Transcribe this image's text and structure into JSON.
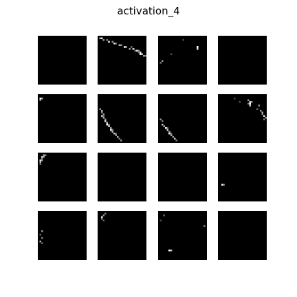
{
  "figure": {
    "title": "activation_4"
  },
  "panels": {
    "rows": 4,
    "cols": 4,
    "background_color": "#000000",
    "pixels_per_side": 28,
    "tiles": [
      {
        "row": 0,
        "col": 0,
        "pixels": []
      },
      {
        "row": 0,
        "col": 1,
        "pixels": [
          [
            1,
            1,
            0.7
          ],
          [
            2,
            1,
            0.9
          ],
          [
            3,
            2,
            0.6
          ],
          [
            5,
            2,
            0.5
          ],
          [
            6,
            3,
            0.8
          ],
          [
            8,
            3,
            0.6
          ],
          [
            9,
            4,
            0.9
          ],
          [
            10,
            4,
            0.5
          ],
          [
            12,
            5,
            0.7
          ],
          [
            13,
            5,
            0.6
          ],
          [
            15,
            6,
            0.8
          ],
          [
            16,
            6,
            0.5
          ],
          [
            18,
            7,
            0.6
          ],
          [
            20,
            7,
            0.8
          ],
          [
            21,
            8,
            0.5
          ],
          [
            22,
            8,
            0.9
          ],
          [
            23,
            8,
            0.6
          ],
          [
            24,
            9,
            0.9
          ],
          [
            24,
            10,
            1.0
          ],
          [
            25,
            10,
            0.7
          ],
          [
            26,
            11,
            0.6
          ],
          [
            27,
            11,
            0.5
          ],
          [
            23,
            9,
            0.4
          ],
          [
            19,
            6,
            0.4
          ]
        ]
      },
      {
        "row": 0,
        "col": 2,
        "pixels": [
          [
            22,
            6,
            1.0
          ],
          [
            22,
            7,
            0.9
          ],
          [
            2,
            14,
            0.6
          ],
          [
            1,
            15,
            0.5
          ],
          [
            14,
            2,
            0.3
          ],
          [
            7,
            10,
            0.3
          ]
        ]
      },
      {
        "row": 0,
        "col": 3,
        "pixels": []
      },
      {
        "row": 1,
        "col": 0,
        "pixels": [
          [
            1,
            2,
            1.0
          ],
          [
            2,
            2,
            0.7
          ],
          [
            1,
            3,
            0.5
          ]
        ]
      },
      {
        "row": 1,
        "col": 1,
        "pixels": [
          [
            1,
            8,
            0.6
          ],
          [
            2,
            9,
            0.7
          ],
          [
            2,
            10,
            0.5
          ],
          [
            3,
            11,
            0.6
          ],
          [
            2,
            12,
            0.8
          ],
          [
            3,
            13,
            0.7
          ],
          [
            4,
            14,
            0.6
          ],
          [
            4,
            15,
            0.9
          ],
          [
            5,
            16,
            0.8
          ],
          [
            5,
            17,
            1.0
          ],
          [
            6,
            18,
            0.7
          ],
          [
            7,
            19,
            0.6
          ],
          [
            7,
            20,
            0.9
          ],
          [
            8,
            21,
            0.7
          ],
          [
            9,
            22,
            0.8
          ],
          [
            10,
            23,
            0.6
          ],
          [
            11,
            24,
            0.7
          ],
          [
            12,
            25,
            0.5
          ],
          [
            13,
            26,
            0.6
          ],
          [
            3,
            12,
            0.4
          ],
          [
            6,
            17,
            0.5
          ],
          [
            8,
            20,
            0.5
          ],
          [
            10,
            22,
            0.4
          ]
        ]
      },
      {
        "row": 1,
        "col": 2,
        "pixels": [
          [
            1,
            14,
            0.6
          ],
          [
            2,
            15,
            0.5
          ],
          [
            2,
            17,
            0.8
          ],
          [
            3,
            18,
            0.7
          ],
          [
            4,
            19,
            1.0
          ],
          [
            5,
            20,
            0.8
          ],
          [
            6,
            21,
            0.6
          ],
          [
            6,
            22,
            0.9
          ],
          [
            7,
            23,
            0.7
          ],
          [
            8,
            24,
            0.6
          ],
          [
            9,
            25,
            0.8
          ],
          [
            10,
            26,
            0.5
          ],
          [
            5,
            19,
            0.4
          ],
          [
            7,
            22,
            0.4
          ]
        ]
      },
      {
        "row": 1,
        "col": 3,
        "pixels": [
          [
            17,
            3,
            0.6
          ],
          [
            18,
            4,
            0.8
          ],
          [
            18,
            5,
            1.0
          ],
          [
            19,
            4,
            0.6
          ],
          [
            17,
            5,
            0.5
          ],
          [
            18,
            6,
            0.7
          ],
          [
            23,
            6,
            0.5
          ],
          [
            24,
            9,
            0.6
          ],
          [
            25,
            10,
            0.7
          ],
          [
            26,
            12,
            0.9
          ],
          [
            27,
            13,
            0.6
          ],
          [
            26,
            14,
            0.5
          ],
          [
            25,
            11,
            0.5
          ],
          [
            9,
            2,
            0.3
          ],
          [
            12,
            4,
            0.3
          ],
          [
            22,
            8,
            0.4
          ]
        ]
      },
      {
        "row": 2,
        "col": 0,
        "pixels": [
          [
            3,
            1,
            0.7
          ],
          [
            4,
            1,
            0.5
          ],
          [
            2,
            2,
            0.8
          ],
          [
            3,
            2,
            0.6
          ],
          [
            2,
            3,
            0.5
          ],
          [
            1,
            4,
            0.9
          ],
          [
            2,
            4,
            0.6
          ],
          [
            1,
            5,
            0.7
          ],
          [
            1,
            6,
            0.4
          ]
        ]
      },
      {
        "row": 2,
        "col": 1,
        "pixels": []
      },
      {
        "row": 2,
        "col": 2,
        "pixels": []
      },
      {
        "row": 2,
        "col": 3,
        "pixels": [
          [
            2,
            18,
            1.0
          ],
          [
            3,
            18,
            0.5
          ]
        ]
      },
      {
        "row": 3,
        "col": 0,
        "pixels": [
          [
            2,
            11,
            0.6
          ],
          [
            1,
            13,
            0.4
          ],
          [
            2,
            15,
            0.5
          ],
          [
            1,
            17,
            0.7
          ],
          [
            2,
            18,
            0.4
          ]
        ]
      },
      {
        "row": 3,
        "col": 1,
        "pixels": [
          [
            2,
            3,
            0.9
          ],
          [
            3,
            2,
            0.6
          ],
          [
            2,
            4,
            0.5
          ],
          [
            4,
            1,
            0.5
          ],
          [
            3,
            5,
            0.4
          ]
        ]
      },
      {
        "row": 3,
        "col": 2,
        "pixels": [
          [
            26,
            8,
            0.5
          ],
          [
            6,
            22,
            1.0
          ],
          [
            7,
            22,
            0.7
          ],
          [
            3,
            2,
            0.4
          ],
          [
            1,
            5,
            0.3
          ]
        ]
      },
      {
        "row": 3,
        "col": 3,
        "pixels": []
      }
    ]
  }
}
